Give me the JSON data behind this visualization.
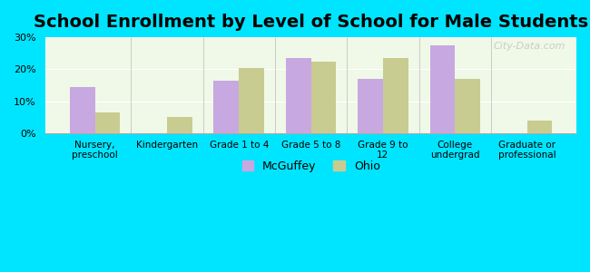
{
  "title": "School Enrollment by Level of School for Male Students",
  "categories": [
    "Nursery,\npreschool",
    "Kindergarten",
    "Grade 1 to 4",
    "Grade 5 to 8",
    "Grade 9 to\n12",
    "College\nundergrad",
    "Graduate or\nprofessional"
  ],
  "mcguffey": [
    14.5,
    0,
    16.5,
    23.5,
    17.0,
    27.5,
    0
  ],
  "ohio": [
    6.5,
    5.0,
    20.5,
    22.5,
    23.5,
    17.0,
    4.0
  ],
  "mcguffey_color": "#c8a8e0",
  "ohio_color": "#c8cc90",
  "background_outer": "#00e5ff",
  "background_inner": "#f0f8e8",
  "title_fontsize": 14,
  "ylim": [
    0,
    30
  ],
  "yticks": [
    0,
    10,
    20,
    30
  ],
  "ylabel_format": "%",
  "bar_width": 0.35,
  "legend_labels": [
    "McGuffey",
    "Ohio"
  ],
  "watermark": "City-Data.com"
}
